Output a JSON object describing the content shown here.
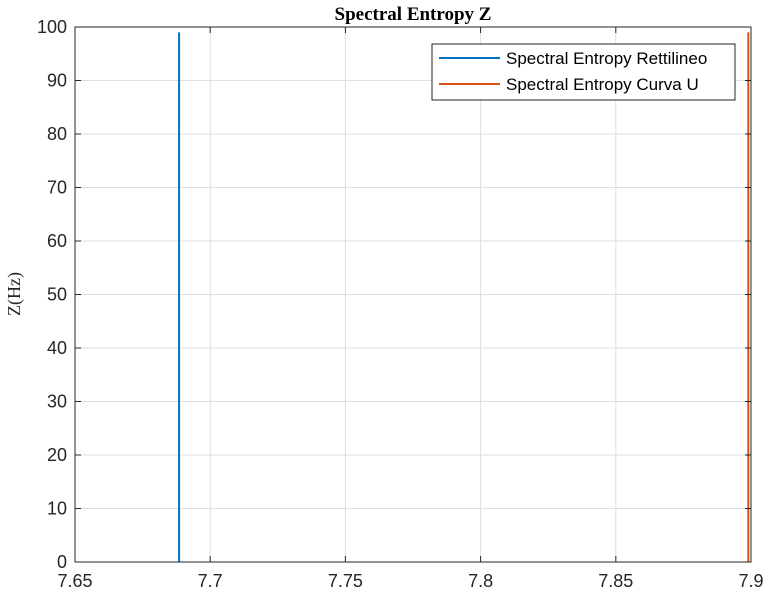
{
  "chart_data": {
    "type": "line",
    "title": "Spectral Entropy Z",
    "xlabel": "",
    "ylabel": "Z(Hz)",
    "xlim": [
      7.65,
      7.9
    ],
    "ylim": [
      0,
      100
    ],
    "x_ticks": [
      7.65,
      7.7,
      7.75,
      7.8,
      7.85,
      7.9
    ],
    "x_tick_labels": [
      "7.65",
      "7.7",
      "7.75",
      "7.8",
      "7.85",
      "7.9"
    ],
    "y_ticks": [
      0,
      10,
      20,
      30,
      40,
      50,
      60,
      70,
      80,
      90,
      100
    ],
    "y_tick_labels": [
      "0",
      "10",
      "20",
      "30",
      "40",
      "50",
      "60",
      "70",
      "80",
      "90",
      "100"
    ],
    "grid": true,
    "legend_position": "top-right",
    "series": [
      {
        "name": "Spectral Entropy Rettilineo",
        "color": "#0072BD",
        "x": [
          7.6885,
          7.6885
        ],
        "y": [
          0,
          99
        ]
      },
      {
        "name": "Spectral Entropy Curva U",
        "color": "#D95319",
        "x": [
          7.899,
          7.899
        ],
        "y": [
          0,
          99
        ]
      }
    ]
  }
}
